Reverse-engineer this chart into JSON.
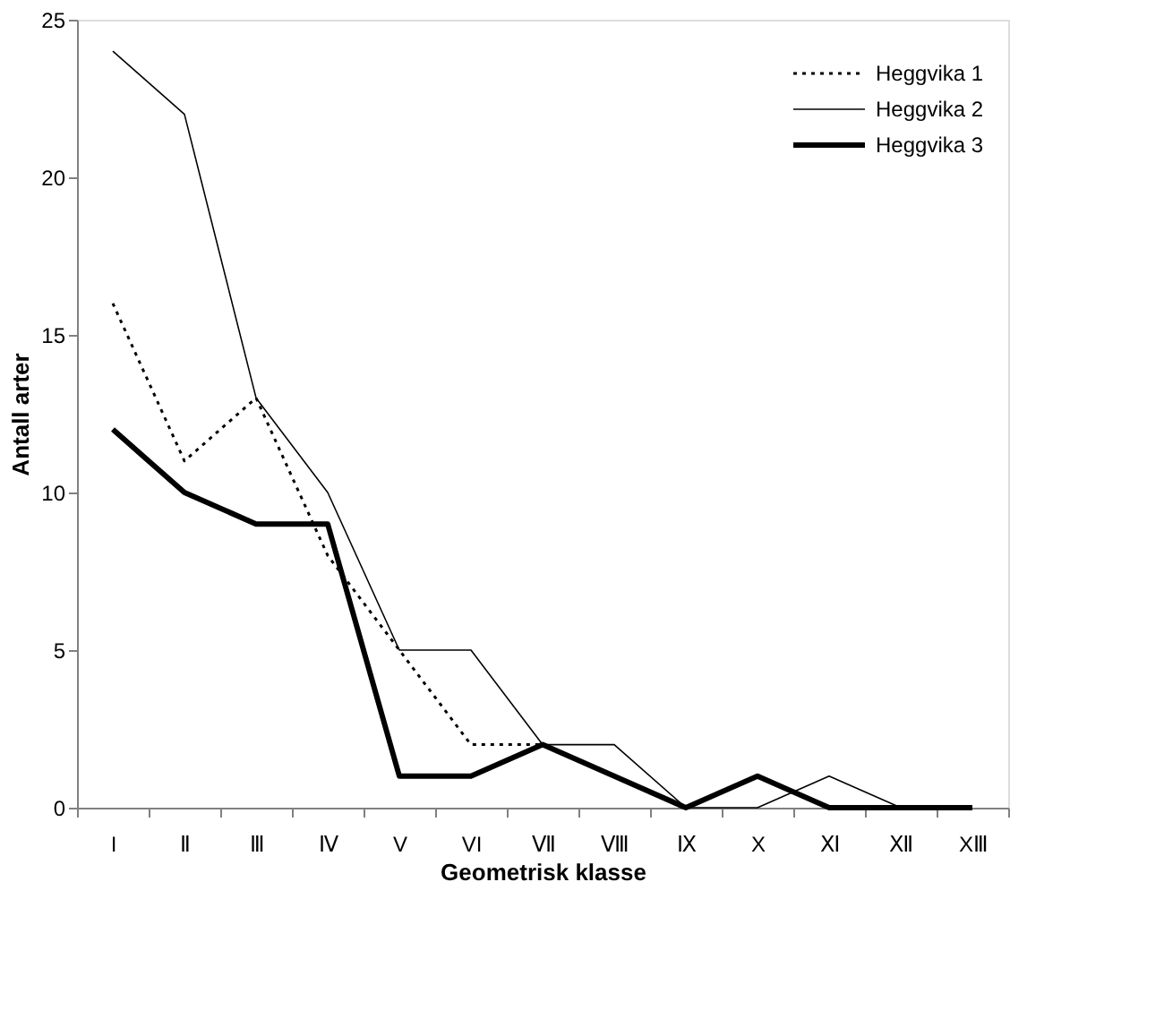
{
  "chart_data": {
    "type": "line",
    "xlabel": "Geometrisk klasse",
    "ylabel": "Antall arter",
    "categories": [
      "I",
      "Ⅱ",
      "Ⅲ",
      "Ⅳ",
      "V",
      "VI",
      "Ⅶ",
      "Ⅷ",
      "Ⅸ",
      "X",
      "Ⅺ",
      "Ⅻ",
      "XⅢ"
    ],
    "series": [
      {
        "name": "Heggvika 1",
        "color": "#000000",
        "line_style": "dotted",
        "values": [
          16,
          11,
          13,
          8,
          5,
          2,
          2,
          1,
          0,
          1,
          0,
          0,
          0
        ]
      },
      {
        "name": "Heggvika 2",
        "color": "#000000",
        "line_style": "solid",
        "values": [
          24,
          22,
          13,
          10,
          5,
          5,
          2,
          2,
          0,
          0,
          1,
          0,
          0
        ]
      },
      {
        "name": "Heggvika 3",
        "color": "#000000",
        "line_style": "solid",
        "values": [
          12,
          10,
          9,
          9,
          1,
          1,
          2,
          1,
          0,
          1,
          0,
          0,
          0
        ]
      }
    ],
    "ylim": [
      0,
      25
    ],
    "yticks": [
      0,
      5,
      10,
      15,
      20,
      25
    ],
    "grid": false,
    "legend": "top right",
    "marker": "none"
  }
}
